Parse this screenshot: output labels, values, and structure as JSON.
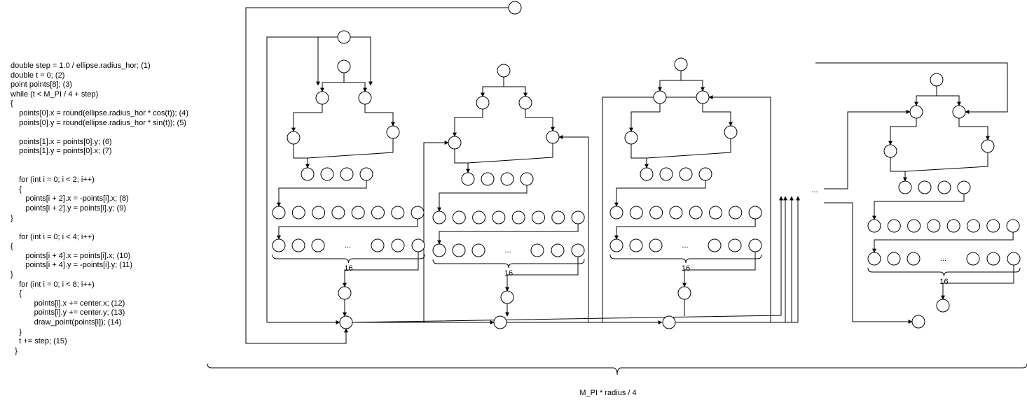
{
  "code": {
    "lines": [
      "double step = 1.0 / ellipse.radius_hor; (1)",
      "double t = 0; (2)",
      "point points[8]; (3)",
      "while (t < M_PI / 4 + step)",
      "{",
      "    points[0].x = round(ellipse.radius_hor * cos(t)); (4)",
      "    points[0].y = round(ellipse.radius_hor * sin(t)); (5)",
      "",
      "    points[1].x = points[0].y; (6)",
      "    points[1].y = points[0].x; (7)",
      "",
      "",
      "    for (int i = 0; i < 2; i++)",
      "    {",
      "       points[i + 2].x = -points[i].x; (8)",
      "       points[i + 2].y = points[i].y; (9)",
      "}",
      "",
      "    for (int i = 0; i < 4; i++)",
      "{",
      "       points[i + 4].x = points[i].x; (10)",
      "       points[i + 4].y = -points[i].y; (11)",
      "}",
      "    for (int i = 0; i < 8; i++)",
      "    {",
      "           points[i].x += center.x; (12)",
      "           points[i].y += center.y; (13)",
      "           draw_point(points[i]); (14)",
      "    }",
      "    t += step; (15)",
      "  }"
    ]
  },
  "diagram": {
    "ellipsis": "...",
    "count_label": "16",
    "bottom_label": "M_PI * radius / 4"
  }
}
